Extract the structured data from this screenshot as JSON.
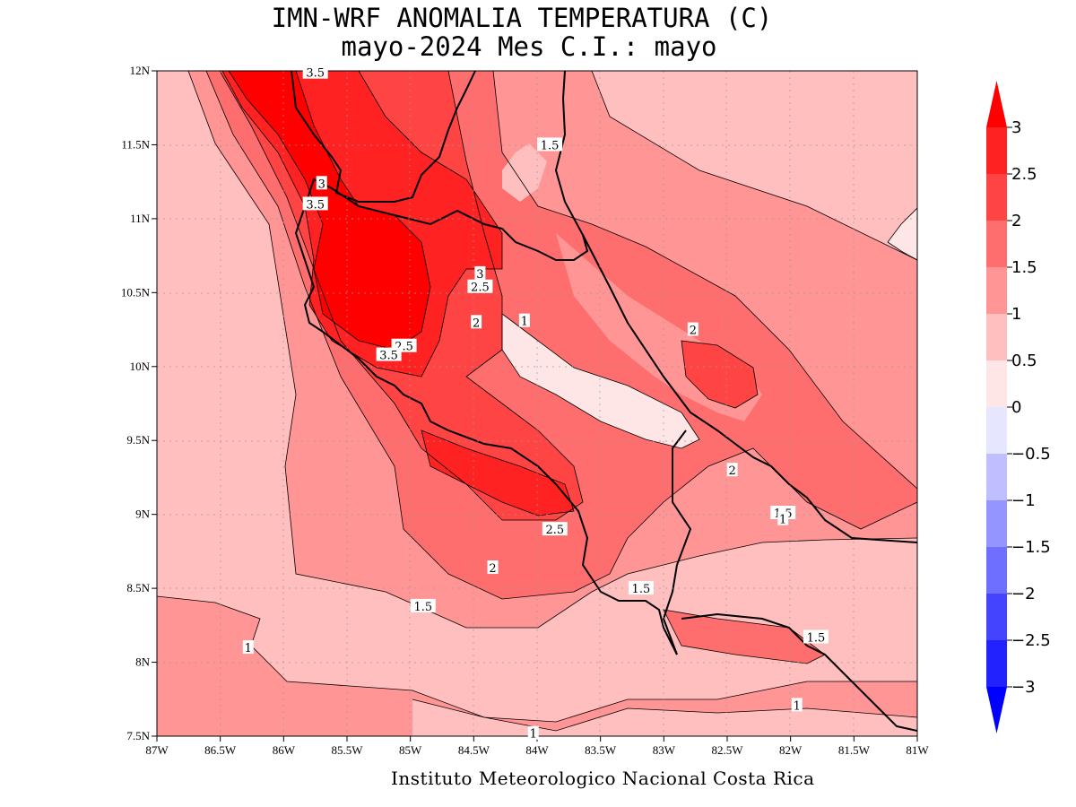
{
  "header": {
    "title_line1": "IMN-WRF  ANOMALIA TEMPERATURA (C)",
    "title_line2": "mayo-2024 Mes C.I.: mayo"
  },
  "footer": {
    "credit": "Instituto Meteorologico Nacional Costa Rica"
  },
  "map": {
    "lat_ticks": [
      "12N",
      "11.5N",
      "11N",
      "10.5N",
      "10N",
      "9.5N",
      "9N",
      "8.5N",
      "8N",
      "7.5N"
    ],
    "lon_ticks": [
      "87W",
      "86.5W",
      "86W",
      "85.5W",
      "85W",
      "84.5W",
      "84W",
      "83.5W",
      "83W",
      "82.5W",
      "82W",
      "81.5W",
      "81W"
    ],
    "lat_range": [
      7.5,
      12
    ],
    "lon_range": [
      -87,
      -81
    ],
    "contour_labels": [
      {
        "text": "3.5",
        "lon": -85.75,
        "lat": 11.99
      },
      {
        "text": "1.5",
        "lon": -83.9,
        "lat": 11.5
      },
      {
        "text": "3",
        "lon": -85.7,
        "lat": 11.24
      },
      {
        "text": "3.5",
        "lon": -85.75,
        "lat": 11.1
      },
      {
        "text": "3",
        "lon": -84.45,
        "lat": 10.63
      },
      {
        "text": "2.5",
        "lon": -84.45,
        "lat": 10.54
      },
      {
        "text": "2",
        "lon": -84.48,
        "lat": 10.3
      },
      {
        "text": "1",
        "lon": -84.1,
        "lat": 10.31
      },
      {
        "text": "2",
        "lon": -82.77,
        "lat": 10.25
      },
      {
        "text": "2.5",
        "lon": -85.05,
        "lat": 10.14
      },
      {
        "text": "3.5",
        "lon": -85.17,
        "lat": 10.08
      },
      {
        "text": "2",
        "lon": -82.46,
        "lat": 9.3
      },
      {
        "text": "1.5",
        "lon": -82.06,
        "lat": 9.01
      },
      {
        "text": "1",
        "lon": -82.06,
        "lat": 8.97
      },
      {
        "text": "2.5",
        "lon": -83.86,
        "lat": 8.9
      },
      {
        "text": "2",
        "lon": -84.35,
        "lat": 8.64
      },
      {
        "text": "1.5",
        "lon": -83.18,
        "lat": 8.5
      },
      {
        "text": "1.5",
        "lon": -84.9,
        "lat": 8.38
      },
      {
        "text": "1.5",
        "lon": -81.8,
        "lat": 8.17
      },
      {
        "text": "1",
        "lon": -86.28,
        "lat": 8.1
      },
      {
        "text": "1",
        "lon": -81.95,
        "lat": 7.71
      },
      {
        "text": "1",
        "lon": -84.03,
        "lat": 7.52
      }
    ]
  },
  "colorbar": {
    "ticks": [
      "3",
      "2.5",
      "2",
      "1.5",
      "1",
      "0.5",
      "0",
      "-0.5",
      "-1",
      "-1.5",
      "-2",
      "-2.5",
      "-3"
    ],
    "colors": {
      "gt3": "#ff0000",
      "2.5_3": "#ff2222",
      "2_2.5": "#ff4444",
      "1.5_2": "#ff6e6e",
      "1_1.5": "#ff9595",
      "0.5_1": "#ffbfbf",
      "0_0.5": "#ffe6e6",
      "-0.5_0": "#e6e6ff",
      "-1_-0.5": "#bfbfff",
      "-1.5_-1": "#9595ff",
      "-2_-1.5": "#6e6eff",
      "-2.5_-2": "#4444ff",
      "-3_-2.5": "#2222ff",
      "lt-3": "#0000ff"
    }
  }
}
